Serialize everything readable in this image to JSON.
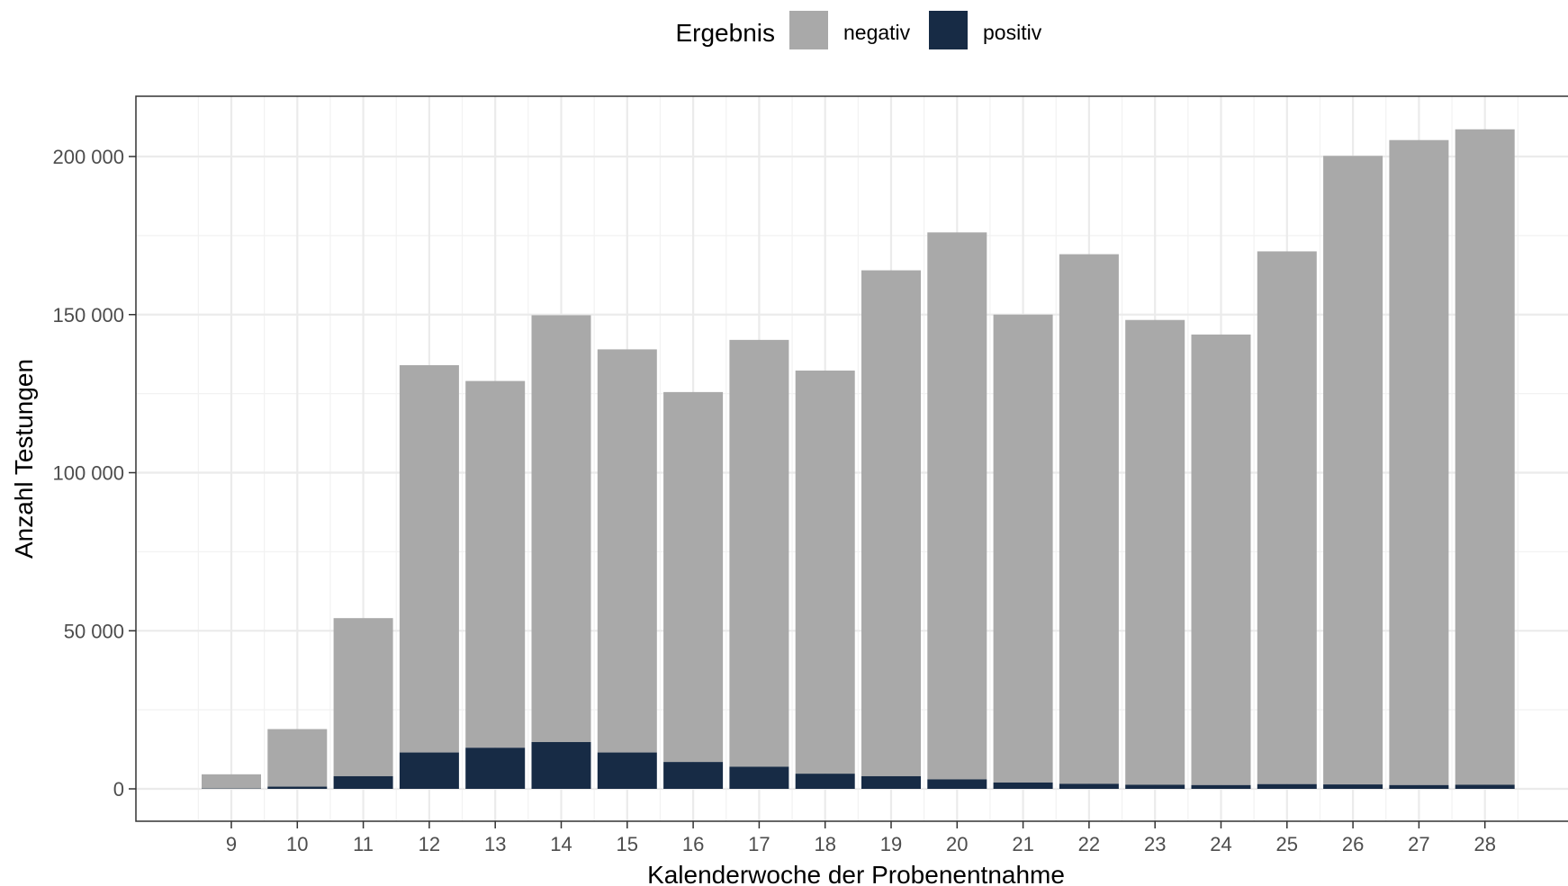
{
  "chart_data": {
    "type": "bar",
    "stacked": true,
    "categories": [
      "9",
      "10",
      "11",
      "12",
      "13",
      "14",
      "15",
      "16",
      "17",
      "18",
      "19",
      "20",
      "21",
      "22",
      "23",
      "24",
      "25",
      "26",
      "27",
      "28"
    ],
    "series": [
      {
        "name": "negativ",
        "color": "#a9a9a9",
        "values": [
          4500,
          18200,
          50000,
          122500,
          116000,
          135000,
          127500,
          117000,
          135000,
          127500,
          160000,
          173000,
          148000,
          167500,
          147000,
          142500,
          168500,
          198800,
          204000,
          207300
        ]
      },
      {
        "name": "positiv",
        "color": "#172b45",
        "values": [
          100,
          700,
          4000,
          11500,
          13000,
          14800,
          11500,
          8500,
          7000,
          4800,
          4000,
          3000,
          2000,
          1600,
          1300,
          1200,
          1500,
          1400,
          1200,
          1300
        ]
      }
    ],
    "xlabel": "Kalenderwoche der Probenentnahme",
    "ylabel": "Anzahl Testungen",
    "ylim": [
      -10000,
      220000
    ],
    "yticks": [
      0,
      50000,
      100000,
      150000,
      200000
    ],
    "ytick_labels": [
      "0",
      "50 000",
      "100 000",
      "150 000",
      "200 000"
    ],
    "legend": {
      "title": "Ergebnis",
      "position": "top",
      "items": [
        "negativ",
        "positiv"
      ]
    },
    "grid": true
  }
}
